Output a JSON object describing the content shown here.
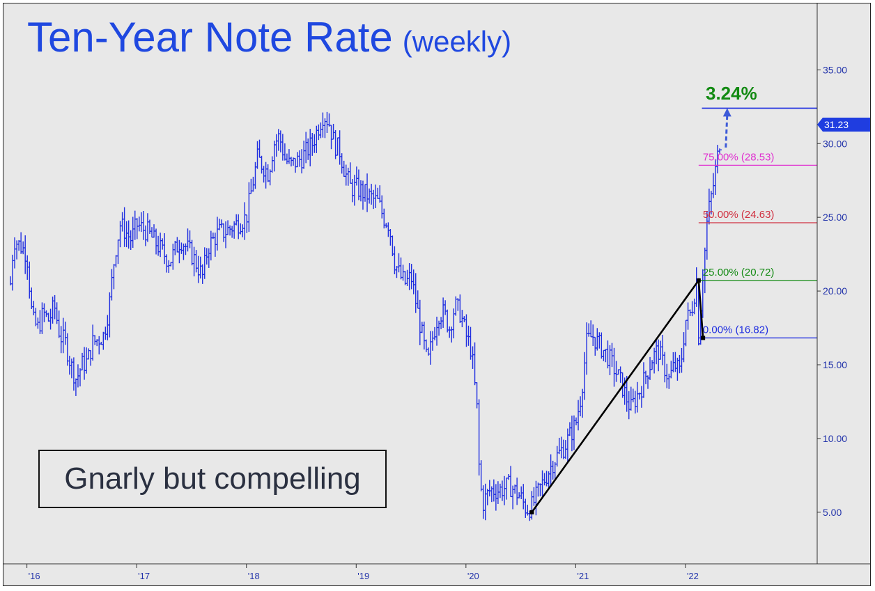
{
  "title": {
    "main": "Ten-Year Note Rate",
    "sub": "(weekly)"
  },
  "annotation": "Gnarly but compelling",
  "target": {
    "label": "3.24%",
    "value": 32.4,
    "color": "#128a12"
  },
  "last_price": {
    "label": "31.23",
    "value": 31.23
  },
  "colors": {
    "price": "#1f2ee0",
    "axis_text": "#2233aa",
    "background": "#e8e8e8",
    "tag": "#1f3de0"
  },
  "chart_data": {
    "type": "line",
    "title": "Ten-Year Note Rate (weekly)",
    "xlabel": "",
    "ylabel": "",
    "ylim": [
      1.5,
      39.5
    ],
    "xlim": [
      2015.85,
      2023.2
    ],
    "x_ticks": [
      {
        "label": "'16",
        "value": 2016.0
      },
      {
        "label": "'17",
        "value": 2017.0
      },
      {
        "label": "'18",
        "value": 2018.0
      },
      {
        "label": "'19",
        "value": 2019.0
      },
      {
        "label": "'20",
        "value": 2020.0
      },
      {
        "label": "'21",
        "value": 2021.0
      },
      {
        "label": "'22",
        "value": 2022.0
      }
    ],
    "y_ticks": [
      "5.00",
      "10.00",
      "15.00",
      "20.00",
      "25.00",
      "30.00",
      "35.00"
    ],
    "series": [
      {
        "x": [
          2015.85,
          2015.88,
          2015.95,
          2016.0,
          2016.05,
          2016.1,
          2016.15,
          2016.2,
          2016.25,
          2016.3,
          2016.35,
          2016.4,
          2016.45,
          2016.5,
          2016.55,
          2016.6,
          2016.7,
          2016.75,
          2016.8,
          2016.85,
          2016.9,
          2016.95,
          2017.0,
          2017.1,
          2017.2,
          2017.3,
          2017.4,
          2017.5,
          2017.6,
          2017.65,
          2017.7,
          2017.75,
          2017.8,
          2017.9,
          2018.0,
          2018.05,
          2018.1,
          2018.15,
          2018.2,
          2018.25,
          2018.3,
          2018.35,
          2018.4,
          2018.5,
          2018.6,
          2018.7,
          2018.75,
          2018.8,
          2018.85,
          2018.9,
          2018.95,
          2019.0,
          2019.1,
          2019.2,
          2019.25,
          2019.3,
          2019.35,
          2019.4,
          2019.45,
          2019.5,
          2019.55,
          2019.6,
          2019.65,
          2019.7,
          2019.75,
          2019.8,
          2019.85,
          2019.9,
          2019.95,
          2020.0,
          2020.05,
          2020.1,
          2020.12,
          2020.15,
          2020.18,
          2020.22,
          2020.3,
          2020.4,
          2020.5,
          2020.55,
          2020.6,
          2020.7,
          2020.8,
          2020.9,
          2021.0,
          2021.05,
          2021.1,
          2021.15,
          2021.2,
          2021.3,
          2021.4,
          2021.5,
          2021.55,
          2021.6,
          2021.7,
          2021.75,
          2021.8,
          2021.85,
          2021.9,
          2021.95,
          2022.0,
          2022.05,
          2022.1,
          2022.12,
          2022.15,
          2022.18,
          2022.2,
          2022.25,
          2022.3,
          2022.33
        ],
        "y": [
          20.5,
          23.5,
          23,
          22.5,
          18,
          17.5,
          18.5,
          18,
          19,
          17,
          16.5,
          15,
          14,
          15,
          15.2,
          16.5,
          17,
          19,
          22.5,
          24.5,
          24,
          23.5,
          24.5,
          24,
          23,
          22,
          23.5,
          22.5,
          21,
          23,
          23.5,
          24,
          24,
          24.5,
          25,
          27,
          29,
          28.5,
          28,
          30,
          30.5,
          29,
          28.5,
          29,
          30,
          32,
          31.5,
          30,
          29.5,
          28,
          27,
          27,
          26.5,
          26,
          25,
          24.5,
          22,
          21,
          20.5,
          21,
          19,
          17,
          15,
          17,
          18.5,
          18.5,
          17.5,
          19,
          18.5,
          17,
          16,
          12,
          8,
          5.5,
          6,
          6.5,
          6.5,
          6.8,
          6,
          5.2,
          5.4,
          7,
          8.5,
          9.5,
          11,
          13,
          16.5,
          17,
          16.5,
          15.5,
          14,
          12,
          12.8,
          13.5,
          15.5,
          16,
          15,
          14,
          15,
          14.5,
          18,
          18.5,
          20.7,
          16.82,
          20.5,
          23,
          25,
          27,
          29.5,
          31.23
        ]
      }
    ],
    "fibonacci": [
      {
        "label": "75.00% (28.53)",
        "value": 28.53,
        "color": "#e030d0"
      },
      {
        "label": "50.00% (24.63)",
        "value": 24.63,
        "color": "#d03040"
      },
      {
        "label": "25.00% (20.72)",
        "value": 20.72,
        "color": "#138a13"
      },
      {
        "label": "0.00% (16.82)",
        "value": 16.82,
        "color": "#1f2ee0"
      }
    ],
    "abc_pattern": [
      {
        "x": 2020.6,
        "y": 5.0
      },
      {
        "x": 2022.12,
        "y": 20.72
      },
      {
        "x": 2022.16,
        "y": 16.82
      }
    ]
  }
}
